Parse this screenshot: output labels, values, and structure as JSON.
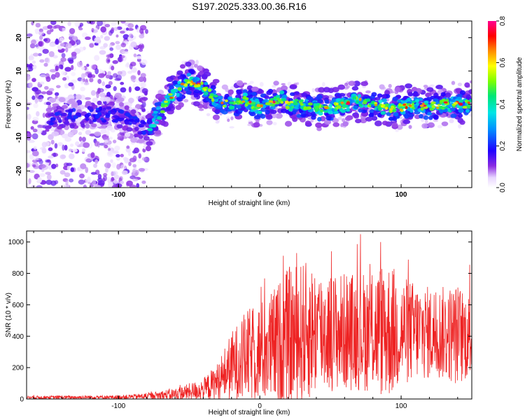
{
  "chart_data": [
    {
      "type": "heatmap",
      "title": "S197.2025.333.00.36.R16",
      "xlabel": "Height of straight line (km)",
      "ylabel": "Frequency (Hz)",
      "xlim": [
        -165,
        150
      ],
      "ylim": [
        -25,
        25
      ],
      "xticks": [
        -100,
        0,
        100
      ],
      "yticks": [
        -20,
        -10,
        0,
        10,
        20
      ],
      "colorbar": {
        "label": "Normalized spectral amplitude",
        "range": [
          0.0,
          0.8
        ],
        "ticks": [
          "0.0",
          "0.2",
          "0.4",
          "0.6",
          "0.8"
        ]
      },
      "ridge": {
        "x": [
          -140,
          -120,
          -100,
          -90,
          -80,
          -70,
          -60,
          -50,
          -45,
          -40,
          -35,
          -30,
          -20,
          -10,
          0,
          10,
          15,
          20,
          30,
          40,
          50,
          60,
          70,
          80,
          90,
          100,
          110,
          120,
          130,
          140,
          150
        ],
        "freq": [
          -4,
          -3,
          -3,
          -5,
          -8,
          -2,
          4,
          7,
          6,
          5,
          3,
          1,
          0,
          1,
          -1,
          1,
          2,
          0,
          0,
          -1,
          -1,
          0,
          1,
          0,
          -1,
          -1,
          0,
          -1,
          0,
          0,
          0
        ]
      }
    },
    {
      "type": "line",
      "xlabel": "Height of straight line (km)",
      "ylabel": "SNR (10 * v/v)",
      "xlim": [
        -165,
        150
      ],
      "ylim": [
        0,
        1070
      ],
      "xticks": [
        -100,
        0,
        100
      ],
      "yticks": [
        0,
        200,
        400,
        600,
        800,
        1000
      ],
      "line_color": "#ee2222",
      "envelope": {
        "x": [
          -165,
          -100,
          -80,
          -60,
          -40,
          -30,
          -20,
          -10,
          0,
          10,
          20,
          30,
          40,
          50,
          60,
          70,
          80,
          90,
          100,
          110,
          120,
          130,
          140,
          150
        ],
        "mean": [
          10,
          12,
          18,
          30,
          60,
          110,
          210,
          270,
          300,
          330,
          380,
          420,
          440,
          430,
          430,
          430,
          440,
          440,
          430,
          430,
          420,
          420,
          410,
          400
        ],
        "amp": [
          10,
          12,
          20,
          40,
          70,
          120,
          220,
          290,
          320,
          380,
          460,
          460,
          420,
          380,
          380,
          380,
          400,
          460,
          360,
          320,
          300,
          300,
          330,
          260
        ]
      }
    }
  ]
}
